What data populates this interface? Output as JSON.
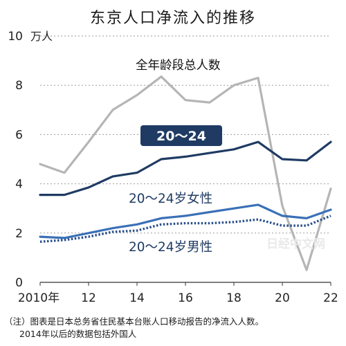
{
  "title": "东京人口净流入的推移",
  "watermark": "日经中文网",
  "note_line1": "（注）图表是日本总务省住民基本台账人口移动报告的净流入人数。",
  "note_line2": "2014年以后的数据包括外国人",
  "chart_data": {
    "type": "line",
    "x": [
      2010,
      2011,
      2012,
      2013,
      2014,
      2015,
      2016,
      2017,
      2018,
      2019,
      2020,
      2021,
      2022
    ],
    "x_ticks": [
      {
        "value": 2010,
        "label": "2010年"
      },
      {
        "value": 2012,
        "label": "12"
      },
      {
        "value": 2014,
        "label": "14"
      },
      {
        "value": 2016,
        "label": "16"
      },
      {
        "value": 2018,
        "label": "18"
      },
      {
        "value": 2020,
        "label": "20"
      },
      {
        "value": 2022,
        "label": "22"
      }
    ],
    "y_ticks": [
      0,
      2,
      4,
      6,
      8,
      10
    ],
    "ylim": [
      0,
      10
    ],
    "xlim": [
      2010,
      2022
    ],
    "y_unit": "万人",
    "grid": "horizontal dotted",
    "series": [
      {
        "name": "全年龄段总人数",
        "color": "#b5b5b5",
        "style": "solid",
        "values": [
          4.8,
          4.45,
          5.7,
          7.0,
          7.6,
          8.35,
          7.4,
          7.3,
          8.0,
          8.3,
          3.1,
          0.5,
          3.8
        ]
      },
      {
        "name": "20～24",
        "color": "#1f3b63",
        "style": "solid",
        "values": [
          3.55,
          3.55,
          3.85,
          4.3,
          4.45,
          5.0,
          5.1,
          5.25,
          5.4,
          5.7,
          5.0,
          4.95,
          5.7
        ]
      },
      {
        "name": "20～24岁女性",
        "color": "#3a70b6",
        "style": "solid",
        "values": [
          1.85,
          1.8,
          2.0,
          2.2,
          2.35,
          2.6,
          2.7,
          2.85,
          3.0,
          3.15,
          2.7,
          2.6,
          2.95
        ]
      },
      {
        "name": "20～24岁男性",
        "color": "#2a4f8a",
        "style": "dotted",
        "values": [
          1.65,
          1.72,
          1.85,
          2.05,
          2.1,
          2.35,
          2.4,
          2.4,
          2.45,
          2.55,
          2.3,
          2.3,
          2.7
        ]
      }
    ]
  }
}
